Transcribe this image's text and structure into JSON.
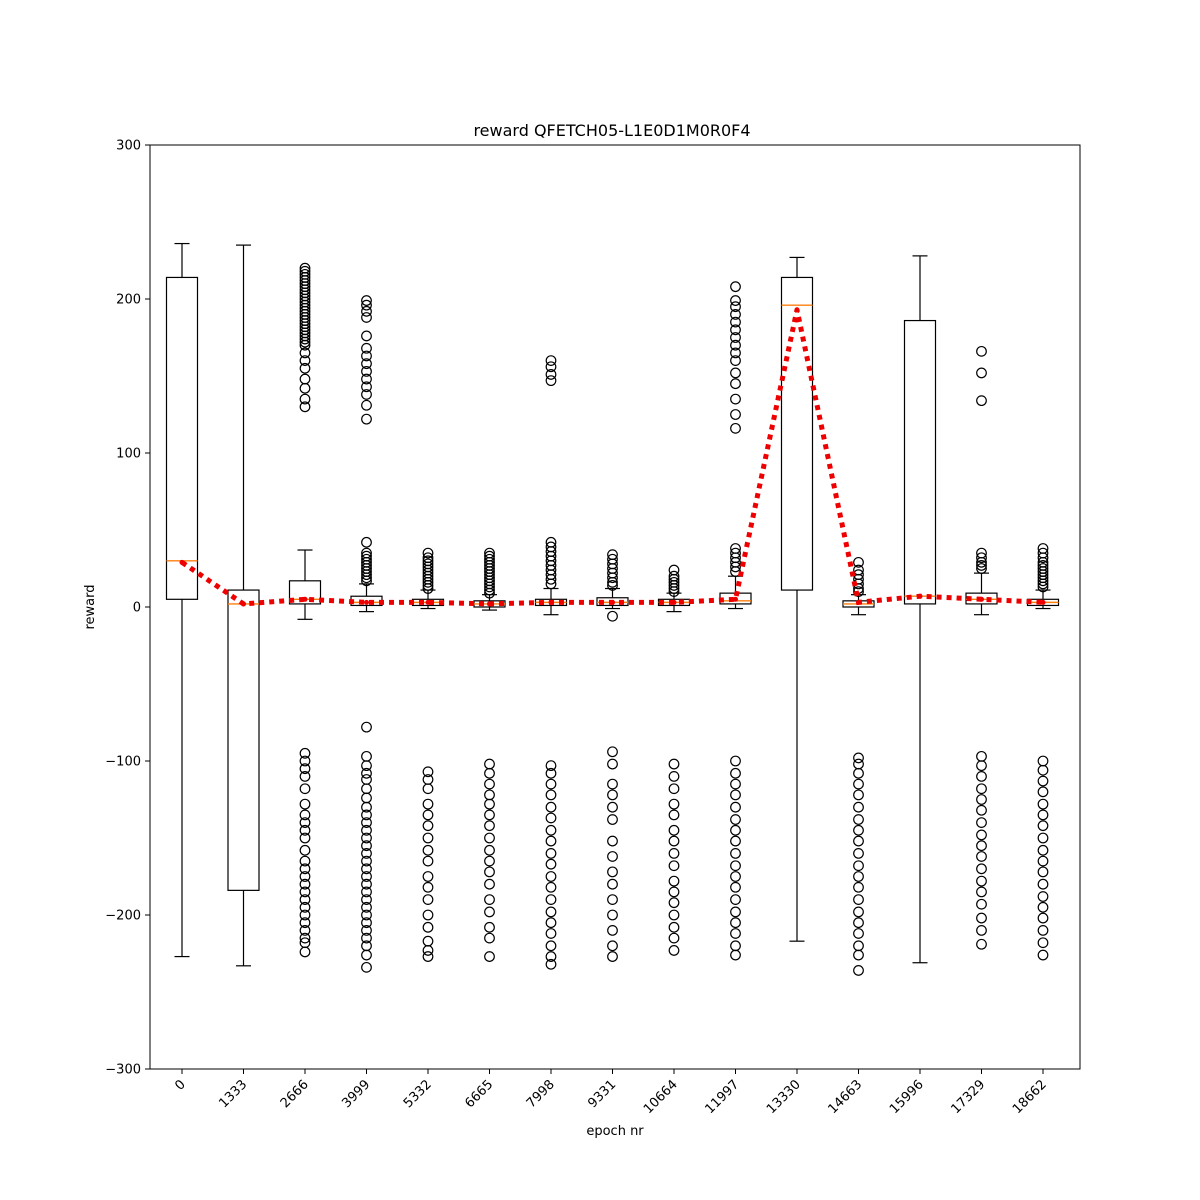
{
  "chart_data": {
    "type": "box",
    "title": "reward QFETCH05-L1E0D1M0R0F4",
    "xlabel": "epoch nr",
    "ylabel": "reward",
    "ylim": [
      -300,
      300
    ],
    "yticks": [
      -300,
      -200,
      -100,
      0,
      100,
      200,
      300
    ],
    "categories": [
      "0",
      "1333",
      "2666",
      "3999",
      "5332",
      "6665",
      "7998",
      "9331",
      "10664",
      "11997",
      "13330",
      "14663",
      "15996",
      "17329",
      "18662"
    ],
    "boxes": [
      {
        "q1": 5,
        "median": 30,
        "q3": 214,
        "whisker_low": -227,
        "whisker_high": 236,
        "outliers": []
      },
      {
        "q1": -184,
        "median": 2,
        "q3": 11,
        "whisker_low": -233,
        "whisker_high": 235,
        "outliers": []
      },
      {
        "q1": 2,
        "median": 5,
        "q3": 17,
        "whisker_low": -8,
        "whisker_high": 37,
        "outliers": [
          220,
          218,
          216,
          214,
          212,
          210,
          208,
          206,
          204,
          202,
          200,
          198,
          196,
          194,
          192,
          190,
          188,
          186,
          184,
          182,
          180,
          178,
          176,
          174,
          172,
          170,
          165,
          160,
          155,
          148,
          142,
          135,
          130,
          -95,
          -100,
          -105,
          -110,
          -118,
          -128,
          -135,
          -140,
          -145,
          -150,
          -158,
          -165,
          -170,
          -175,
          -180,
          -185,
          -190,
          -195,
          -200,
          -205,
          -210,
          -215,
          -218,
          -224
        ]
      },
      {
        "q1": 1,
        "median": 3,
        "q3": 7,
        "whisker_low": -3,
        "whisker_high": 15,
        "outliers": [
          199,
          196,
          192,
          188,
          176,
          168,
          163,
          158,
          153,
          148,
          143,
          138,
          131,
          122,
          42,
          35,
          33,
          31,
          29,
          27,
          25,
          23,
          21,
          19,
          17,
          -78,
          -97,
          -103,
          -108,
          -112,
          -118,
          -124,
          -130,
          -135,
          -140,
          -145,
          -150,
          -155,
          -160,
          -165,
          -170,
          -175,
          -180,
          -185,
          -190,
          -195,
          -200,
          -205,
          -210,
          -215,
          -220,
          -226,
          -234
        ]
      },
      {
        "q1": 1,
        "median": 3,
        "q3": 5,
        "whisker_low": -1,
        "whisker_high": 11,
        "outliers": [
          35,
          32,
          30,
          28,
          26,
          24,
          22,
          20,
          18,
          16,
          14,
          12,
          -107,
          -112,
          -118,
          -128,
          -135,
          -142,
          -150,
          -158,
          -165,
          -175,
          -182,
          -190,
          -200,
          -208,
          -217,
          -223,
          -227
        ]
      },
      {
        "q1": 0,
        "median": 2,
        "q3": 4,
        "whisker_low": -2,
        "whisker_high": 8,
        "outliers": [
          35,
          33,
          31,
          29,
          27,
          25,
          23,
          21,
          19,
          17,
          15,
          13,
          11,
          9,
          -102,
          -108,
          -115,
          -122,
          -128,
          -135,
          -142,
          -150,
          -158,
          -165,
          -172,
          -180,
          -190,
          -198,
          -208,
          -215,
          -227
        ]
      },
      {
        "q1": 1,
        "median": 3,
        "q3": 5,
        "whisker_low": -5,
        "whisker_high": 12,
        "outliers": [
          160,
          156,
          151,
          147,
          42,
          39,
          36,
          33,
          30,
          27,
          24,
          21,
          18,
          15,
          -103,
          -108,
          -115,
          -122,
          -130,
          -137,
          -145,
          -152,
          -160,
          -167,
          -175,
          -182,
          -190,
          -198,
          -205,
          -212,
          -220,
          -227,
          -232
        ]
      },
      {
        "q1": 1,
        "median": 3,
        "q3": 6,
        "whisker_low": -1,
        "whisker_high": 12,
        "outliers": [
          34,
          31,
          28,
          25,
          22,
          19,
          16,
          14,
          -6,
          -94,
          -102,
          -115,
          -122,
          -130,
          -138,
          -152,
          -162,
          -172,
          -180,
          -190,
          -200,
          -210,
          -220,
          -227
        ]
      },
      {
        "q1": 1,
        "median": 3,
        "q3": 5,
        "whisker_low": -3,
        "whisker_high": 9,
        "outliers": [
          24,
          20,
          18,
          16,
          14,
          12,
          10,
          -102,
          -110,
          -118,
          -128,
          -135,
          -145,
          -152,
          -160,
          -168,
          -178,
          -185,
          -192,
          -200,
          -208,
          -215,
          -223
        ]
      },
      {
        "q1": 2,
        "median": 4,
        "q3": 9,
        "whisker_low": -1,
        "whisker_high": 20,
        "outliers": [
          208,
          199,
          195,
          190,
          185,
          180,
          175,
          170,
          165,
          160,
          152,
          145,
          135,
          125,
          116,
          38,
          35,
          32,
          29,
          26,
          23,
          -100,
          -108,
          -115,
          -122,
          -130,
          -138,
          -145,
          -152,
          -160,
          -168,
          -175,
          -182,
          -190,
          -198,
          -205,
          -212,
          -220,
          -226
        ]
      },
      {
        "q1": 11,
        "median": 196,
        "q3": 214,
        "whisker_low": -217,
        "whisker_high": 227,
        "outliers": []
      },
      {
        "q1": 0,
        "median": 2,
        "q3": 4,
        "whisker_low": -5,
        "whisker_high": 8,
        "outliers": [
          29,
          24,
          21,
          18,
          15,
          12,
          10,
          -98,
          -102,
          -108,
          -115,
          -122,
          -130,
          -138,
          -145,
          -152,
          -160,
          -168,
          -175,
          -182,
          -190,
          -198,
          -205,
          -212,
          -220,
          -226,
          -236
        ]
      },
      {
        "q1": 2,
        "median": 7,
        "q3": 186,
        "whisker_low": -231,
        "whisker_high": 228,
        "outliers": []
      },
      {
        "q1": 2,
        "median": 5,
        "q3": 9,
        "whisker_low": -5,
        "whisker_high": 22,
        "outliers": [
          166,
          152,
          134,
          35,
          32,
          29,
          27,
          25,
          -97,
          -103,
          -110,
          -118,
          -125,
          -132,
          -140,
          -148,
          -155,
          -162,
          -170,
          -178,
          -185,
          -193,
          -202,
          -210,
          -219
        ]
      },
      {
        "q1": 1,
        "median": 3,
        "q3": 5,
        "whisker_low": -1,
        "whisker_high": 11,
        "outliers": [
          38,
          35,
          32,
          29,
          27,
          25,
          23,
          21,
          19,
          17,
          15,
          13,
          -100,
          -106,
          -113,
          -120,
          -128,
          -135,
          -142,
          -150,
          -158,
          -165,
          -172,
          -180,
          -188,
          -195,
          -202,
          -210,
          -218,
          -226
        ]
      }
    ],
    "mean_line": {
      "color": "#ee0000",
      "values": [
        29,
        2,
        5,
        3,
        3,
        2,
        3,
        3,
        3,
        5,
        193,
        3,
        7,
        5,
        3
      ]
    }
  }
}
